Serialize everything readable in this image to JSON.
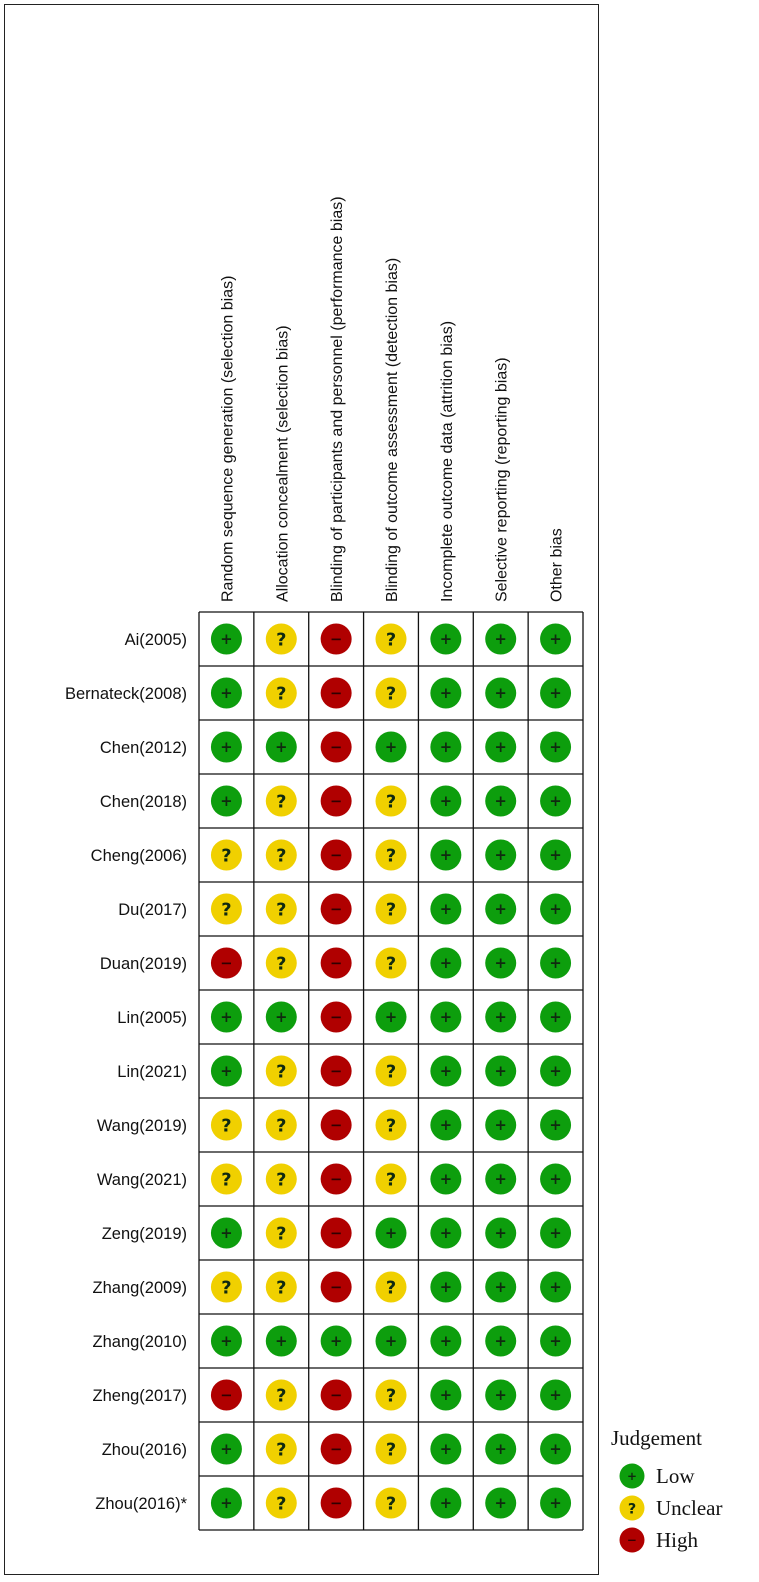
{
  "chart_data": {
    "type": "heatmap",
    "columns": [
      "Random sequence generation (selection bias)",
      "Allocation concealment (selection bias)",
      "Blinding of participants and personnel (performance bias)",
      "Blinding of outcome assessment (detection bias)",
      "Incomplete outcome data (attrition bias)",
      "Selective reporting (reporting bias)",
      "Other bias"
    ],
    "rows": [
      {
        "study": "Ai(2005)",
        "values": [
          "low",
          "unclear",
          "high",
          "unclear",
          "low",
          "low",
          "low"
        ]
      },
      {
        "study": "Bernateck(2008)",
        "values": [
          "low",
          "unclear",
          "high",
          "unclear",
          "low",
          "low",
          "low"
        ]
      },
      {
        "study": "Chen(2012)",
        "values": [
          "low",
          "low",
          "high",
          "low",
          "low",
          "low",
          "low"
        ]
      },
      {
        "study": "Chen(2018)",
        "values": [
          "low",
          "unclear",
          "high",
          "unclear",
          "low",
          "low",
          "low"
        ]
      },
      {
        "study": "Cheng(2006)",
        "values": [
          "unclear",
          "unclear",
          "high",
          "unclear",
          "low",
          "low",
          "low"
        ]
      },
      {
        "study": "Du(2017)",
        "values": [
          "unclear",
          "unclear",
          "high",
          "unclear",
          "low",
          "low",
          "low"
        ]
      },
      {
        "study": "Duan(2019)",
        "values": [
          "high",
          "unclear",
          "high",
          "unclear",
          "low",
          "low",
          "low"
        ]
      },
      {
        "study": "Lin(2005)",
        "values": [
          "low",
          "low",
          "high",
          "low",
          "low",
          "low",
          "low"
        ]
      },
      {
        "study": "Lin(2021)",
        "values": [
          "low",
          "unclear",
          "high",
          "unclear",
          "low",
          "low",
          "low"
        ]
      },
      {
        "study": "Wang(2019)",
        "values": [
          "unclear",
          "unclear",
          "high",
          "unclear",
          "low",
          "low",
          "low"
        ]
      },
      {
        "study": "Wang(2021)",
        "values": [
          "unclear",
          "unclear",
          "high",
          "unclear",
          "low",
          "low",
          "low"
        ]
      },
      {
        "study": "Zeng(2019)",
        "values": [
          "low",
          "unclear",
          "high",
          "low",
          "low",
          "low",
          "low"
        ]
      },
      {
        "study": "Zhang(2009)",
        "values": [
          "unclear",
          "unclear",
          "high",
          "unclear",
          "low",
          "low",
          "low"
        ]
      },
      {
        "study": "Zhang(2010)",
        "values": [
          "low",
          "low",
          "low",
          "low",
          "low",
          "low",
          "low"
        ]
      },
      {
        "study": "Zheng(2017)",
        "values": [
          "high",
          "unclear",
          "high",
          "unclear",
          "low",
          "low",
          "low"
        ]
      },
      {
        "study": "Zhou(2016)",
        "values": [
          "low",
          "unclear",
          "high",
          "unclear",
          "low",
          "low",
          "low"
        ]
      },
      {
        "study": "Zhou(2016)*",
        "values": [
          "low",
          "unclear",
          "high",
          "unclear",
          "low",
          "low",
          "low"
        ]
      }
    ],
    "legend": {
      "title": "Judgement",
      "placement": "bottom-right",
      "items": [
        {
          "key": "low",
          "label": "Low"
        },
        {
          "key": "unclear",
          "label": "Unclear"
        },
        {
          "key": "high",
          "label": "High"
        }
      ]
    },
    "judgements": {
      "low": {
        "symbol": "+",
        "color": "#0d9e0d"
      },
      "unclear": {
        "symbol": "?",
        "color": "#f0d000"
      },
      "high": {
        "symbol": "−",
        "color": "#b00000"
      }
    }
  }
}
